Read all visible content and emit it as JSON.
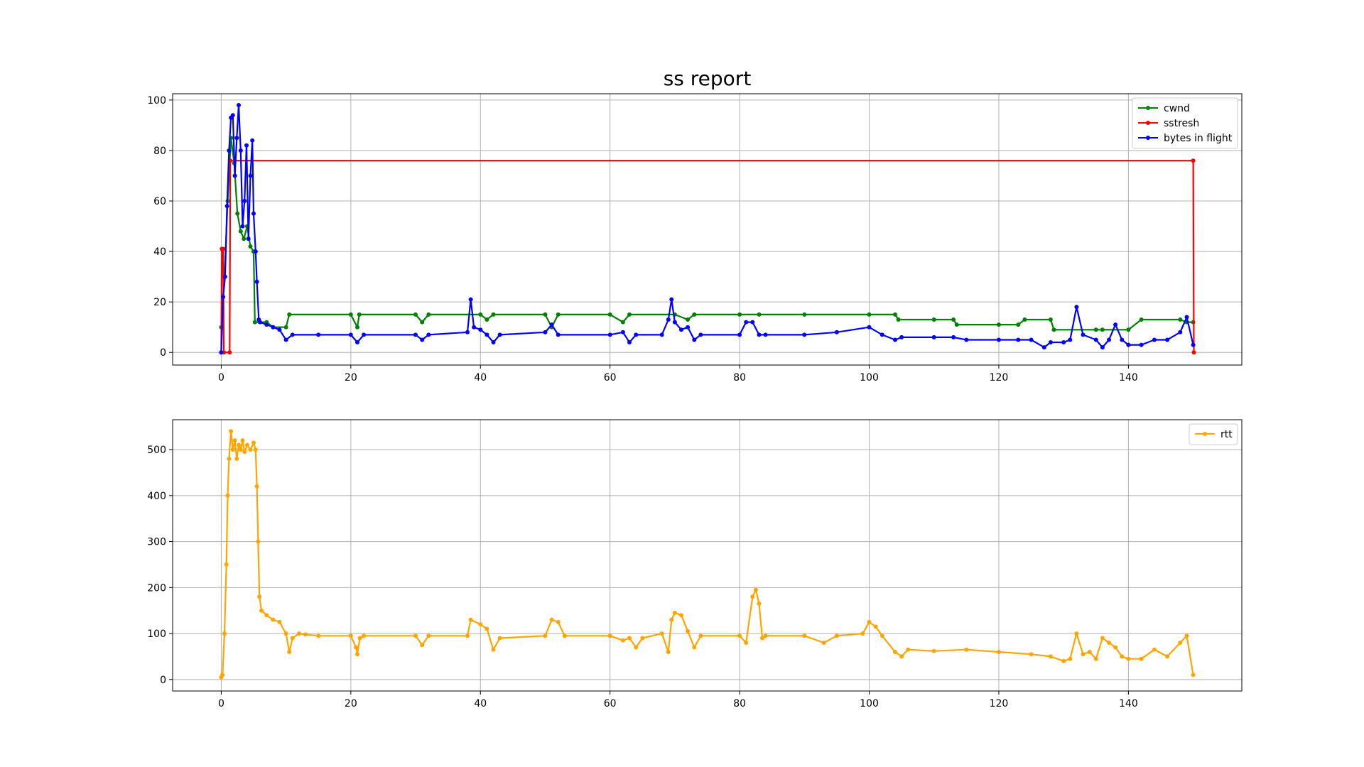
{
  "title": "ss report",
  "chart_data": [
    {
      "type": "line",
      "grid": true,
      "legend_placement": "top-right",
      "xlim": [
        -7.5,
        157.5
      ],
      "ylim": [
        -5,
        102.5
      ],
      "xticks": [
        0,
        20,
        40,
        60,
        80,
        100,
        120,
        140
      ],
      "yticks": [
        0,
        20,
        40,
        60,
        80,
        100
      ],
      "series": [
        {
          "name": "cwnd",
          "color": "#008000",
          "points": [
            [
              0,
              10
            ],
            [
              0.5,
              30
            ],
            [
              1,
              60
            ],
            [
              1.5,
              85
            ],
            [
              2,
              75
            ],
            [
              2.5,
              55
            ],
            [
              3,
              48
            ],
            [
              3.5,
              45
            ],
            [
              4,
              50
            ],
            [
              4.5,
              42
            ],
            [
              5,
              40
            ],
            [
              5.2,
              12
            ],
            [
              6,
              12
            ],
            [
              7,
              12
            ],
            [
              8,
              10
            ],
            [
              10,
              10
            ],
            [
              10.5,
              15
            ],
            [
              20,
              15
            ],
            [
              21,
              10
            ],
            [
              21.3,
              15
            ],
            [
              30,
              15
            ],
            [
              31,
              12
            ],
            [
              32,
              15
            ],
            [
              40,
              15
            ],
            [
              41,
              13
            ],
            [
              42,
              15
            ],
            [
              50,
              15
            ],
            [
              51,
              10
            ],
            [
              52,
              15
            ],
            [
              60,
              15
            ],
            [
              62,
              12
            ],
            [
              63,
              15
            ],
            [
              70,
              15
            ],
            [
              72,
              13
            ],
            [
              73,
              15
            ],
            [
              80,
              15
            ],
            [
              83,
              15
            ],
            [
              90,
              15
            ],
            [
              100,
              15
            ],
            [
              104,
              15
            ],
            [
              104.5,
              13
            ],
            [
              110,
              13
            ],
            [
              113,
              13
            ],
            [
              113.5,
              11
            ],
            [
              120,
              11
            ],
            [
              123,
              11
            ],
            [
              124,
              13
            ],
            [
              128,
              13
            ],
            [
              128.5,
              9
            ],
            [
              135,
              9
            ],
            [
              136,
              9
            ],
            [
              140,
              9
            ],
            [
              142,
              13
            ],
            [
              148,
              13
            ],
            [
              149,
              12
            ],
            [
              150,
              12
            ]
          ]
        },
        {
          "name": "sstresh",
          "color": "#ff0000",
          "points": [
            [
              0,
              0
            ],
            [
              0.1,
              41
            ],
            [
              0.3,
              41
            ],
            [
              0.4,
              0
            ],
            [
              1.3,
              0
            ],
            [
              1.4,
              76
            ],
            [
              150,
              76
            ],
            [
              150.1,
              0
            ]
          ]
        },
        {
          "name": "bytes in flight",
          "color": "#0000ff",
          "points": [
            [
              0,
              0
            ],
            [
              0.3,
              22
            ],
            [
              0.6,
              30
            ],
            [
              0.9,
              58
            ],
            [
              1.2,
              80
            ],
            [
              1.5,
              93
            ],
            [
              1.8,
              94
            ],
            [
              2.1,
              70
            ],
            [
              2.4,
              85
            ],
            [
              2.7,
              98
            ],
            [
              3,
              80
            ],
            [
              3.3,
              50
            ],
            [
              3.6,
              60
            ],
            [
              3.9,
              82
            ],
            [
              4.2,
              45
            ],
            [
              4.5,
              70
            ],
            [
              4.8,
              84
            ],
            [
              5,
              55
            ],
            [
              5.3,
              40
            ],
            [
              5.5,
              28
            ],
            [
              5.8,
              13
            ],
            [
              6,
              12
            ],
            [
              7,
              11
            ],
            [
              8,
              10
            ],
            [
              9,
              9
            ],
            [
              10,
              5
            ],
            [
              11,
              7
            ],
            [
              15,
              7
            ],
            [
              20,
              7
            ],
            [
              21,
              4
            ],
            [
              22,
              7
            ],
            [
              30,
              7
            ],
            [
              31,
              5
            ],
            [
              32,
              7
            ],
            [
              38,
              8
            ],
            [
              38.5,
              21
            ],
            [
              39,
              10
            ],
            [
              40,
              9
            ],
            [
              41,
              7
            ],
            [
              42,
              4
            ],
            [
              43,
              7
            ],
            [
              50,
              8
            ],
            [
              51,
              11
            ],
            [
              52,
              7
            ],
            [
              60,
              7
            ],
            [
              62,
              8
            ],
            [
              63,
              4
            ],
            [
              64,
              7
            ],
            [
              68,
              7
            ],
            [
              69,
              13
            ],
            [
              69.5,
              21
            ],
            [
              70,
              12
            ],
            [
              71,
              9
            ],
            [
              72,
              10
            ],
            [
              73,
              5
            ],
            [
              74,
              7
            ],
            [
              80,
              7
            ],
            [
              81,
              12
            ],
            [
              82,
              12
            ],
            [
              83,
              7
            ],
            [
              84,
              7
            ],
            [
              90,
              7
            ],
            [
              95,
              8
            ],
            [
              100,
              10
            ],
            [
              102,
              7
            ],
            [
              104,
              5
            ],
            [
              105,
              6
            ],
            [
              110,
              6
            ],
            [
              113,
              6
            ],
            [
              115,
              5
            ],
            [
              120,
              5
            ],
            [
              123,
              5
            ],
            [
              125,
              5
            ],
            [
              127,
              2
            ],
            [
              128,
              4
            ],
            [
              130,
              4
            ],
            [
              131,
              5
            ],
            [
              132,
              18
            ],
            [
              133,
              7
            ],
            [
              135,
              5
            ],
            [
              136,
              2
            ],
            [
              137,
              5
            ],
            [
              138,
              11
            ],
            [
              139,
              5
            ],
            [
              140,
              3
            ],
            [
              142,
              3
            ],
            [
              144,
              5
            ],
            [
              146,
              5
            ],
            [
              148,
              8
            ],
            [
              149,
              14
            ],
            [
              150,
              3
            ]
          ]
        }
      ]
    },
    {
      "type": "line",
      "grid": true,
      "legend_placement": "top-right",
      "xlim": [
        -7.5,
        157.5
      ],
      "ylim": [
        -25,
        565
      ],
      "xticks": [
        0,
        20,
        40,
        60,
        80,
        100,
        120,
        140
      ],
      "yticks": [
        0,
        100,
        200,
        300,
        400,
        500
      ],
      "series": [
        {
          "name": "rtt",
          "color": "#ffa500",
          "points": [
            [
              0,
              5
            ],
            [
              0.2,
              10
            ],
            [
              0.5,
              100
            ],
            [
              0.8,
              250
            ],
            [
              1,
              400
            ],
            [
              1.2,
              480
            ],
            [
              1.5,
              540
            ],
            [
              1.8,
              500
            ],
            [
              2.1,
              520
            ],
            [
              2.4,
              480
            ],
            [
              2.7,
              510
            ],
            [
              3,
              500
            ],
            [
              3.3,
              520
            ],
            [
              3.6,
              495
            ],
            [
              4,
              510
            ],
            [
              4.5,
              500
            ],
            [
              5,
              515
            ],
            [
              5.3,
              500
            ],
            [
              5.5,
              420
            ],
            [
              5.7,
              300
            ],
            [
              5.9,
              180
            ],
            [
              6.2,
              150
            ],
            [
              7,
              140
            ],
            [
              8,
              130
            ],
            [
              9,
              125
            ],
            [
              10,
              100
            ],
            [
              10.5,
              60
            ],
            [
              11,
              90
            ],
            [
              12,
              100
            ],
            [
              13,
              98
            ],
            [
              15,
              95
            ],
            [
              20,
              95
            ],
            [
              20.8,
              70
            ],
            [
              21,
              55
            ],
            [
              21.4,
              90
            ],
            [
              22,
              95
            ],
            [
              30,
              95
            ],
            [
              31,
              75
            ],
            [
              32,
              95
            ],
            [
              38,
              95
            ],
            [
              38.5,
              130
            ],
            [
              40,
              120
            ],
            [
              41,
              110
            ],
            [
              42,
              65
            ],
            [
              43,
              90
            ],
            [
              50,
              95
            ],
            [
              51,
              130
            ],
            [
              52,
              125
            ],
            [
              53,
              95
            ],
            [
              60,
              95
            ],
            [
              62,
              85
            ],
            [
              63,
              90
            ],
            [
              64,
              70
            ],
            [
              65,
              90
            ],
            [
              68,
              100
            ],
            [
              69,
              60
            ],
            [
              69.5,
              130
            ],
            [
              70,
              145
            ],
            [
              71,
              140
            ],
            [
              72,
              105
            ],
            [
              73,
              70
            ],
            [
              74,
              95
            ],
            [
              80,
              95
            ],
            [
              81,
              80
            ],
            [
              82,
              180
            ],
            [
              82.5,
              195
            ],
            [
              83,
              165
            ],
            [
              83.5,
              90
            ],
            [
              84,
              95
            ],
            [
              90,
              95
            ],
            [
              93,
              80
            ],
            [
              95,
              95
            ],
            [
              99,
              100
            ],
            [
              100,
              125
            ],
            [
              101,
              115
            ],
            [
              102,
              95
            ],
            [
              104,
              60
            ],
            [
              105,
              50
            ],
            [
              106,
              65
            ],
            [
              110,
              62
            ],
            [
              115,
              65
            ],
            [
              120,
              60
            ],
            [
              125,
              55
            ],
            [
              128,
              50
            ],
            [
              130,
              40
            ],
            [
              131,
              45
            ],
            [
              132,
              100
            ],
            [
              133,
              55
            ],
            [
              134,
              60
            ],
            [
              135,
              45
            ],
            [
              136,
              90
            ],
            [
              137,
              80
            ],
            [
              138,
              70
            ],
            [
              139,
              50
            ],
            [
              140,
              45
            ],
            [
              142,
              45
            ],
            [
              144,
              65
            ],
            [
              146,
              50
            ],
            [
              148,
              80
            ],
            [
              149,
              95
            ],
            [
              150,
              10
            ]
          ]
        }
      ]
    }
  ]
}
